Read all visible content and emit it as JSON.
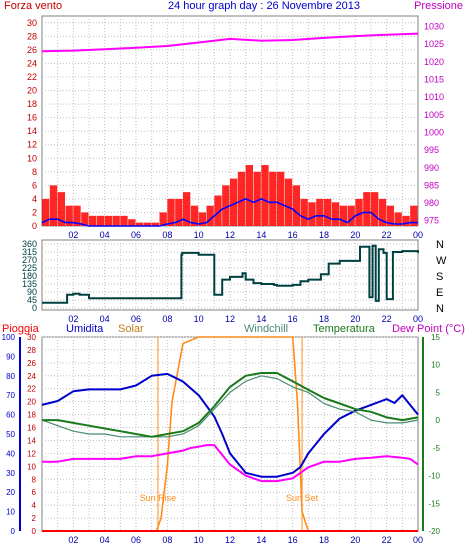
{
  "header": {
    "left_label": "Forza vento",
    "title": "24 hour graph day : 26 Novembre 2013",
    "right_label": "Pressione"
  },
  "colors": {
    "wind": "#ff0000",
    "gust_bar": "#ff0000",
    "avg_wind": "#0000ff",
    "pressure": "#ff00ff",
    "direction": "#004040",
    "humidity": "#0000cc",
    "solar": "#ff8c1a",
    "windchill": "#4a8a70",
    "temperature": "#1a7a1a",
    "dew_point": "#ff00ff",
    "rain": "#ff0000",
    "grid": "#c0c0c0",
    "axis_left": "#c00000",
    "axis_right": "#c000c0"
  },
  "chart_data": [
    {
      "type": "line",
      "title": "24 hour graph day : 26 Novembre 2013",
      "x_ticks": [
        "02",
        "04",
        "06",
        "08",
        "10",
        "12",
        "14",
        "16",
        "18",
        "20",
        "22",
        "00"
      ],
      "y_left": {
        "label": "Forza vento",
        "ticks": [
          0,
          2,
          4,
          6,
          8,
          10,
          12,
          14,
          16,
          18,
          20,
          22,
          24,
          26,
          28,
          30
        ],
        "lim": [
          0,
          31
        ]
      },
      "y_right": {
        "label": "Pressione",
        "ticks": [
          975,
          980,
          985,
          990,
          995,
          1000,
          1005,
          1010,
          1015,
          1020,
          1025,
          1030
        ],
        "lim": [
          973.5,
          1033
        ]
      },
      "series": [
        {
          "key": "gust",
          "name": "Forza vento",
          "axis": "left",
          "hours": [
            0,
            0.5,
            1,
            1.5,
            2,
            2.5,
            3,
            3.5,
            4,
            4.5,
            5,
            5.5,
            6,
            6.5,
            7,
            7.5,
            8,
            8.5,
            9,
            9.5,
            10,
            10.5,
            11,
            11.5,
            12,
            12.5,
            13,
            13.5,
            14,
            14.5,
            15,
            15.5,
            16,
            16.5,
            17,
            17.5,
            18,
            18.5,
            19,
            19.5,
            20,
            20.5,
            21,
            21.5,
            22,
            22.5,
            23,
            23.5,
            24
          ],
          "values": [
            4,
            6,
            5,
            3,
            3,
            2,
            1.5,
            1.5,
            1.5,
            1.5,
            1.5,
            1,
            0.5,
            0.5,
            0.5,
            2,
            4,
            4,
            5,
            3,
            2,
            3,
            4.5,
            6,
            7,
            8,
            9,
            8,
            9,
            8,
            8,
            7,
            6,
            4,
            3.5,
            4,
            4,
            3.5,
            3,
            3,
            4,
            5,
            5,
            4,
            3,
            2,
            1.5,
            3,
            2
          ]
        },
        {
          "key": "avg",
          "name": "",
          "axis": "left",
          "hours": [
            0,
            0.5,
            1,
            1.5,
            2,
            2.5,
            3,
            3.5,
            4,
            4.5,
            5,
            5.5,
            6,
            6.5,
            7,
            7.5,
            8,
            8.5,
            9,
            9.5,
            10,
            10.5,
            11,
            11.5,
            12,
            12.5,
            13,
            13.5,
            14,
            14.5,
            15,
            15.5,
            16,
            16.5,
            17,
            17.5,
            18,
            18.5,
            19,
            19.5,
            20,
            20.5,
            21,
            21.5,
            22,
            22.5,
            23,
            23.5,
            24
          ],
          "values": [
            0.5,
            1,
            1,
            0.5,
            0.5,
            0.3,
            0,
            0,
            0,
            0,
            0,
            0,
            0,
            0,
            0,
            0,
            0.3,
            0.5,
            1,
            0.5,
            0.3,
            0.5,
            1.5,
            2.5,
            3,
            3.5,
            4,
            3.5,
            4,
            3.5,
            3.5,
            3,
            2.5,
            1.5,
            1,
            1.5,
            1.5,
            1,
            1,
            0.5,
            1.5,
            2,
            2,
            1,
            0.5,
            0.3,
            0.3,
            0.5,
            0.5
          ]
        },
        {
          "key": "pressure",
          "name": "Pressione",
          "axis": "right",
          "hours": [
            0,
            2,
            4,
            6,
            8,
            10,
            12,
            14,
            16,
            18,
            20,
            22,
            24
          ],
          "values": [
            1023,
            1023.2,
            1023.6,
            1024,
            1024.5,
            1025.5,
            1026.5,
            1026,
            1026.2,
            1026.8,
            1027.3,
            1027.7,
            1028
          ]
        }
      ]
    },
    {
      "type": "line",
      "x_ticks": [
        "02",
        "04",
        "06",
        "08",
        "10",
        "12",
        "14",
        "16",
        "18",
        "20",
        "22",
        "00"
      ],
      "y_left": {
        "ticks": [
          0,
          45,
          90,
          135,
          180,
          225,
          270,
          315,
          360
        ],
        "lim": [
          0,
          360
        ]
      },
      "y_right": {
        "ticks": [
          "N",
          "W",
          "S",
          "E",
          "N"
        ]
      },
      "series": [
        {
          "key": "direction",
          "name": "",
          "hours": [
            0,
            1.3,
            1.6,
            2.0,
            2.4,
            3.0,
            6.5,
            8.5,
            8.9,
            8.95,
            9.5,
            10.0,
            11.0,
            11.5,
            12.0,
            12.8,
            13.0,
            13.5,
            14.0,
            14.5,
            14.8,
            15.0,
            16.0,
            16.5,
            17.0,
            17.8,
            18.3,
            19.0,
            20.2,
            20.3,
            20.9,
            21.1,
            21.3,
            21.5,
            21.8,
            22.0,
            22.4,
            23.0,
            24.0
          ],
          "values": [
            30,
            30,
            75,
            80,
            75,
            55,
            55,
            55,
            300,
            310,
            310,
            300,
            75,
            160,
            175,
            195,
            160,
            140,
            135,
            135,
            130,
            125,
            130,
            150,
            160,
            190,
            250,
            265,
            265,
            345,
            60,
            350,
            40,
            330,
            310,
            50,
            315,
            320,
            310
          ]
        }
      ]
    },
    {
      "type": "line",
      "x_ticks": [
        "02",
        "04",
        "06",
        "08",
        "10",
        "12",
        "14",
        "16",
        "18",
        "20",
        "22",
        "00"
      ],
      "legend": [
        "Pioggia",
        "Umidita",
        "Solar",
        "Windchill",
        "Temperatura",
        "Dew Point (°C)"
      ],
      "y_humidity": {
        "ticks": [
          0,
          10,
          20,
          30,
          40,
          50,
          60,
          70,
          80,
          90,
          100
        ],
        "lim": [
          0,
          100
        ]
      },
      "y_rain": {
        "ticks": [
          0,
          2,
          4,
          6,
          8,
          10,
          12,
          14,
          16,
          18,
          20,
          22,
          24,
          26,
          28,
          30
        ],
        "lim": [
          0,
          30
        ]
      },
      "y_temp": {
        "ticks": [
          -20,
          -15,
          -10,
          -5,
          0,
          5,
          10,
          15
        ],
        "lim": [
          -20,
          15
        ]
      },
      "annotations": [
        {
          "text": "Sun Rise",
          "hour": 7.4
        },
        {
          "text": "Sun Set",
          "hour": 16.6
        }
      ],
      "series": [
        {
          "key": "humidity",
          "name": "Umidita",
          "axis": "humidity",
          "hours": [
            0,
            1,
            2,
            3,
            4,
            5,
            6,
            7,
            8,
            8.5,
            9,
            10,
            11,
            11.5,
            12,
            13,
            14,
            15,
            16,
            16.5,
            17,
            18,
            19,
            20,
            21,
            22,
            22.5,
            23,
            24
          ],
          "values": [
            65,
            67,
            72,
            73,
            73,
            73,
            75,
            80,
            81,
            79,
            77,
            70,
            59,
            50,
            40,
            30,
            28,
            28,
            30,
            33,
            40,
            50,
            58,
            62,
            65,
            68,
            66,
            70,
            60
          ]
        },
        {
          "key": "solar",
          "name": "Solar",
          "axis": "rain",
          "hours": [
            0,
            7.3,
            7.6,
            8.0,
            8.3,
            9.0,
            10.0,
            11.0,
            13.0,
            15.0,
            16.0,
            16.3,
            16.6,
            17.0,
            24.0
          ],
          "values": [
            0,
            0,
            2,
            10,
            20,
            29,
            30,
            30,
            30,
            30,
            30,
            20,
            3,
            0,
            0
          ]
        },
        {
          "key": "windchill",
          "name": "Windchill",
          "axis": "temp",
          "hours": [
            0,
            1,
            2,
            3,
            4,
            5,
            6,
            7,
            8,
            9,
            10,
            11,
            12,
            13,
            14,
            15,
            16,
            17,
            18,
            19,
            20,
            21,
            22,
            23,
            24
          ],
          "values": [
            0,
            -1,
            -2,
            -2.5,
            -2.5,
            -3,
            -3,
            -3,
            -3,
            -2.5,
            -1,
            2,
            5,
            7,
            8,
            7.5,
            6,
            5,
            3,
            2,
            1.5,
            0,
            -0.5,
            -0.5,
            0
          ]
        },
        {
          "key": "temperature",
          "name": "Temperatura",
          "axis": "temp",
          "hours": [
            0,
            1,
            2,
            3,
            4,
            5,
            6,
            7,
            8,
            9,
            10,
            11,
            12,
            13,
            14,
            15,
            16,
            17,
            18,
            19,
            20,
            21,
            22,
            23,
            24
          ],
          "values": [
            0,
            0,
            -0.5,
            -1,
            -1.5,
            -2,
            -2.5,
            -3,
            -2.5,
            -2,
            -0.5,
            2.5,
            6,
            8,
            8.5,
            8.5,
            7,
            5.5,
            4,
            3,
            2,
            1.5,
            0.5,
            0,
            0.5
          ]
        },
        {
          "key": "dewpoint",
          "name": "Dew Point (°C)",
          "axis": "temp",
          "hours": [
            0,
            1,
            2,
            3,
            4,
            5,
            6,
            7,
            8,
            9,
            9.5,
            10,
            10.5,
            11,
            12,
            13,
            14,
            15,
            16,
            17,
            18,
            19,
            20,
            21,
            22,
            23,
            23.5,
            24
          ],
          "values": [
            -7.5,
            -7.5,
            -7,
            -7,
            -7,
            -7,
            -6.5,
            -6.5,
            -6,
            -5.5,
            -5,
            -4.8,
            -4.5,
            -4.5,
            -8,
            -10,
            -11,
            -11,
            -10.5,
            -8.5,
            -7.5,
            -7.5,
            -7,
            -6.8,
            -6.5,
            -6.8,
            -7,
            -8
          ]
        },
        {
          "key": "rain",
          "name": "Pioggia",
          "axis": "rain",
          "hours": [
            0,
            24
          ],
          "values": [
            0,
            0
          ]
        }
      ]
    }
  ]
}
